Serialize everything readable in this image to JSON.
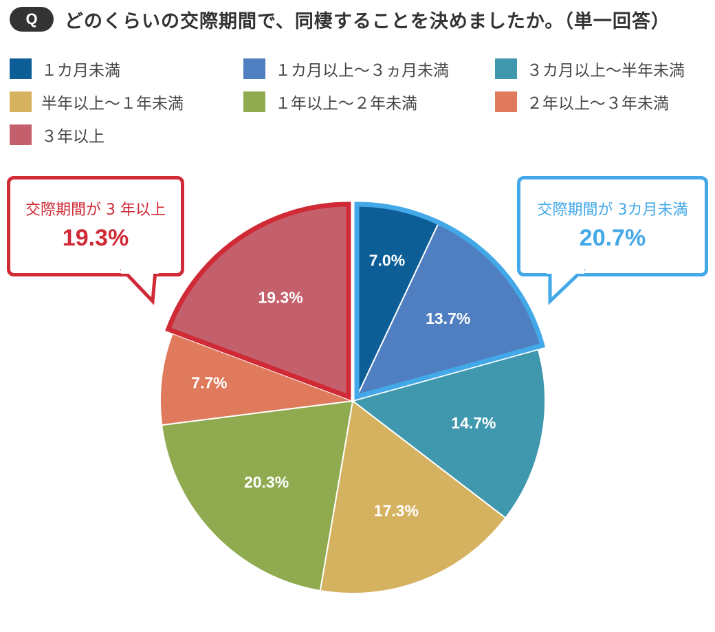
{
  "header": {
    "badge": "Q",
    "question": "どのくらいの交際期間で、同棲することを決めましたか。（単一回答）"
  },
  "callouts": {
    "left": {
      "caption": "交際期間が 3 年以上",
      "value": "19.3%",
      "color": "#cf2a35"
    },
    "right": {
      "caption": "交際期間が 3カ月未満",
      "value": "20.7%",
      "color": "#43a8e8"
    }
  },
  "chart_data": {
    "type": "pie",
    "title": "",
    "categories": [
      "１カ月未満",
      "１カ月以上～３ヵ月未満",
      "３カ月以上～半年未満",
      "半年以上～１年未満",
      "１年以上～２年未満",
      "２年以上～３年未満",
      "３年以上"
    ],
    "values": [
      7.0,
      13.7,
      14.7,
      17.3,
      20.3,
      7.7,
      19.3
    ],
    "value_labels": [
      "7.0%",
      "13.7%",
      "14.7%",
      "17.3%",
      "20.3%",
      "7.7%",
      "19.3%"
    ],
    "colors": [
      "#0d5e96",
      "#4f7fc0",
      "#3f98ae",
      "#d5b260",
      "#8faa4f",
      "#df7a5d",
      "#c4606c"
    ],
    "start_angle": "top, clockwise",
    "highlighted_groups": [
      {
        "slices": [
          0,
          1
        ],
        "border_color": "#43a8e8"
      },
      {
        "slices": [
          6
        ],
        "border_color": "#cf2a35"
      }
    ],
    "legend_position": "top"
  }
}
